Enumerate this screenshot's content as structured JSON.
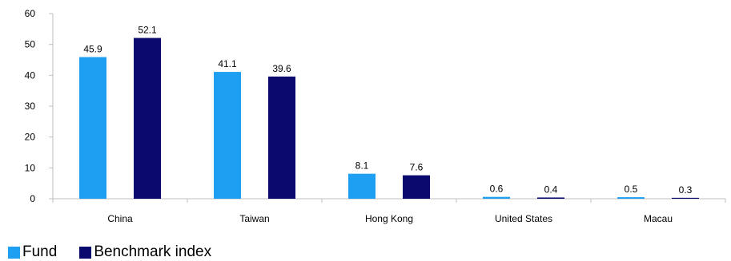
{
  "chart_data": {
    "type": "bar",
    "categories": [
      "China",
      "Taiwan",
      "Hong Kong",
      "United States",
      "Macau"
    ],
    "series": [
      {
        "name": "Fund",
        "color": "#1e9ff2",
        "values": [
          45.9,
          41.1,
          8.1,
          0.6,
          0.5
        ]
      },
      {
        "name": "Benchmark index",
        "color": "#0a0a6e",
        "values": [
          52.1,
          39.6,
          7.6,
          0.4,
          0.3
        ]
      }
    ],
    "yticks": [
      "0",
      "10",
      "20",
      "30",
      "40",
      "50",
      "60"
    ],
    "ylim": [
      0,
      60
    ],
    "grid": false,
    "legend_position": "bottom-left"
  }
}
